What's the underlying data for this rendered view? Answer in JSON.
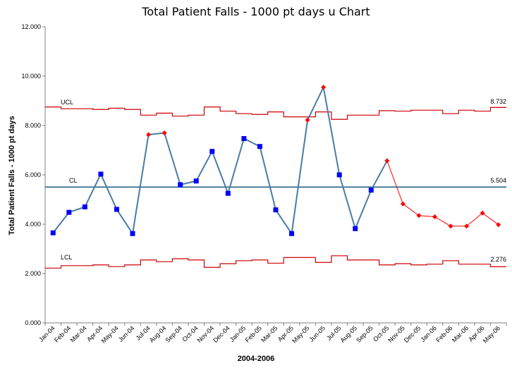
{
  "chart_data": {
    "type": "line",
    "title": "Total Patient Falls - 1000 pt days u Chart",
    "xlabel": "2004-2006",
    "ylabel": "Total Patient Falls - 1000 pt days",
    "ylim": [
      0,
      12
    ],
    "yticks": [
      "0.000",
      "2.000",
      "4.000",
      "6.000",
      "8.000",
      "10.000",
      "12.000"
    ],
    "categories": [
      "Jan-04",
      "Feb-04",
      "Mar-04",
      "Apr-04",
      "May-04",
      "Jun-04",
      "Jul-04",
      "Aug-04",
      "Sep-04",
      "Oct-04",
      "Nov-04",
      "Dec-04",
      "Jan-05",
      "Feb-05",
      "Mar-05",
      "Apr-05",
      "May-05",
      "Jun-05",
      "Jul-05",
      "Aug-05",
      "Sep-05",
      "Oct-05",
      "Nov-05",
      "Dec-05",
      "Jan-06",
      "Feb-06",
      "Mar-06",
      "Apr-06",
      "May-06"
    ],
    "series": [
      {
        "values": [
          3.65,
          4.48,
          4.7,
          6.03,
          4.6,
          3.62,
          7.63,
          7.7,
          5.6,
          5.75,
          6.95,
          5.25,
          7.47,
          7.15,
          4.58,
          3.62,
          8.22,
          9.55,
          6.0,
          3.82,
          5.38,
          6.57,
          4.82,
          4.35,
          4.3,
          3.92,
          3.92,
          4.45,
          3.98
        ],
        "marker_status": [
          "in",
          "in",
          "in",
          "in",
          "in",
          "in",
          "out",
          "out",
          "in",
          "in",
          "in",
          "in",
          "in",
          "in",
          "in",
          "in",
          "out",
          "out",
          "in",
          "in",
          "in",
          "out",
          "out",
          "out",
          "out",
          "out",
          "out",
          "out",
          "out"
        ]
      }
    ],
    "ucl": [
      8.75,
      8.68,
      8.68,
      8.65,
      8.7,
      8.65,
      8.42,
      8.5,
      8.38,
      8.42,
      8.75,
      8.58,
      8.48,
      8.45,
      8.55,
      8.35,
      8.35,
      8.55,
      8.25,
      8.42,
      8.42,
      8.6,
      8.58,
      8.62,
      8.62,
      8.48,
      8.62,
      8.58,
      8.732
    ],
    "lcl": [
      2.22,
      2.32,
      2.32,
      2.35,
      2.28,
      2.35,
      2.55,
      2.48,
      2.6,
      2.55,
      2.25,
      2.4,
      2.52,
      2.55,
      2.42,
      2.65,
      2.65,
      2.45,
      2.72,
      2.55,
      2.55,
      2.35,
      2.4,
      2.35,
      2.38,
      2.52,
      2.38,
      2.38,
      2.276
    ],
    "cl": 5.504,
    "labels": {
      "ucl": "UCL",
      "cl": "CL",
      "lcl": "LCL",
      "ucl_value": "8.732",
      "cl_value": "5.504",
      "lcl_value": "2.276"
    },
    "grid": false,
    "colors": {
      "line_in": "#4a7ca6",
      "marker_in": "#0000ff",
      "line_out": "#ff0000",
      "marker_out": "#ff0000",
      "limits": "#cc0000",
      "center": "#2e6b8e"
    }
  }
}
